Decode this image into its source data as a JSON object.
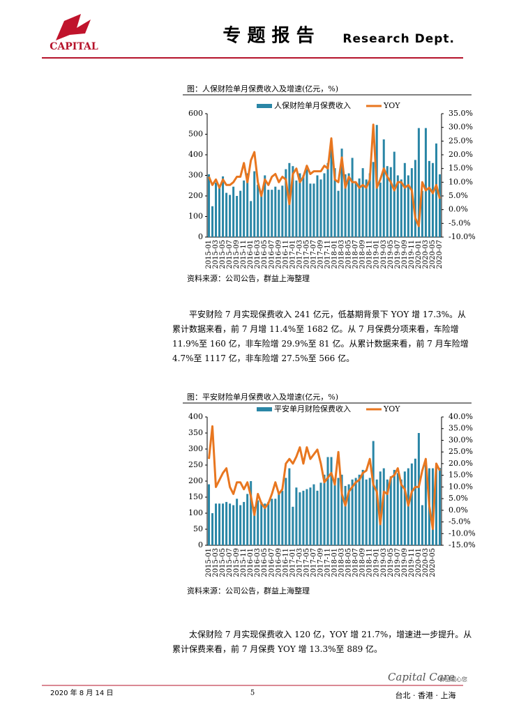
{
  "header": {
    "logo": "CAPITAL",
    "title": "专 题 报 告",
    "dept": "Research Dept."
  },
  "chart_data": [
    {
      "type": "combo",
      "caption": "图：人保财险单月保费收入及增速(亿元，%)",
      "source": "资料来源：公司公告，群益上海整理",
      "categories": [
        "2015-01",
        null,
        "2015-03",
        null,
        "2015-05",
        null,
        "2015-07",
        null,
        "2015-09",
        null,
        "2015-11",
        null,
        "2016-01",
        null,
        "2016-03",
        null,
        "2016-05",
        null,
        "2016-07",
        null,
        "2016-09",
        null,
        "2016-11",
        null,
        "2017-01",
        null,
        "2017-03",
        null,
        "2017-05",
        null,
        "2017-07",
        null,
        "2017-09",
        null,
        "2017-11",
        null,
        "2018-01",
        null,
        "2018-03",
        null,
        "2018-05",
        null,
        "2018-07",
        null,
        "2018-09",
        null,
        "2018-11",
        null,
        "2019-01",
        null,
        "2019-03",
        null,
        "2019-05",
        null,
        "2019-07",
        null,
        "2019-09",
        null,
        "2019-11",
        null,
        "2020-01",
        null,
        "2020-03",
        null,
        "2020-05",
        null,
        "2020-07"
      ],
      "series": [
        {
          "name": "人保财险单月保费收入",
          "type": "bar",
          "color": "#2a86a6",
          "values": [
            305,
            150,
            265,
            250,
            295,
            215,
            205,
            245,
            200,
            225,
            275,
            310,
            175,
            320,
            255,
            225,
            300,
            230,
            230,
            245,
            230,
            250,
            330,
            360,
            345,
            275,
            310,
            300,
            330,
            260,
            260,
            300,
            280,
            310,
            360,
            430,
            335,
            225,
            430,
            305,
            310,
            385,
            265,
            285,
            335,
            280,
            310,
            365,
            545,
            265,
            475,
            345,
            340,
            415,
            300,
            280,
            360,
            300,
            335,
            375,
            530,
            225,
            530,
            370,
            360,
            455,
            305
          ]
        },
        {
          "name": "YOY",
          "type": "line",
          "axis": "y2",
          "color": "#e8761f",
          "values": [
            12,
            9,
            11,
            8,
            11,
            9,
            9,
            10,
            12,
            12,
            17,
            10,
            18,
            21,
            10,
            5,
            11,
            9,
            12,
            13,
            10,
            12,
            11,
            2,
            13,
            15,
            10,
            12,
            16,
            13,
            14,
            14,
            14,
            16,
            15,
            26,
            11,
            10,
            19,
            8,
            12,
            10,
            10,
            8,
            9,
            8,
            11,
            31,
            8,
            11,
            15,
            12,
            10,
            7,
            10,
            10,
            8,
            9,
            7,
            -3,
            -6,
            10,
            7,
            8,
            6,
            9,
            4
          ]
        }
      ],
      "ylim": [
        0,
        600
      ],
      "yticks": [
        0,
        100,
        200,
        300,
        400,
        500,
        600
      ],
      "y2lim": [
        -10,
        35
      ],
      "y2ticks": [
        {
          "value": -10,
          "label": "-10.0%"
        },
        {
          "value": -5,
          "label": "-5.0%"
        },
        {
          "value": 0,
          "label": "0.0%"
        },
        {
          "value": 5,
          "label": "5.0%"
        },
        {
          "value": 10,
          "label": "10.0%"
        },
        {
          "value": 15,
          "label": "15.0%"
        },
        {
          "value": 20,
          "label": "20.0%"
        },
        {
          "value": 25,
          "label": "25.0%"
        },
        {
          "value": 30,
          "label": "30.0%"
        },
        {
          "value": 35,
          "label": "35.0%"
        }
      ]
    },
    {
      "type": "combo",
      "caption": "图：平安财险单月保费收入及增速(亿元，%)",
      "source": "资料来源：公司公告，群益上海整理",
      "categories": [
        "2015-01",
        null,
        "2015-03",
        null,
        "2015-05",
        null,
        "2015-07",
        null,
        "2015-09",
        null,
        "2015-11",
        null,
        "2016-01",
        null,
        "2016-03",
        null,
        "2016-05",
        null,
        "2016-07",
        null,
        "2016-09",
        null,
        "2016-11",
        null,
        "2017-01",
        null,
        "2017-03",
        null,
        "2017-05",
        null,
        "2017-07",
        null,
        "2017-09",
        null,
        "2017-11",
        null,
        "2018-01",
        null,
        "2018-03",
        null,
        "2018-05",
        null,
        "2018-07",
        null,
        "2018-09",
        null,
        "2018-11",
        null,
        "2019-01",
        null,
        "2019-03",
        null,
        "2019-05",
        null,
        "2019-07",
        null,
        "2019-09",
        null,
        "2019-11",
        null,
        "2020-01",
        null,
        "2020-03",
        null,
        "2020-05",
        null,
        null
      ],
      "series": [
        {
          "name": "平安单月财险保费收入",
          "type": "bar",
          "color": "#2a86a6",
          "values": [
            190,
            100,
            130,
            130,
            130,
            135,
            130,
            125,
            145,
            125,
            135,
            160,
            200,
            120,
            140,
            135,
            130,
            135,
            145,
            145,
            160,
            170,
            210,
            240,
            120,
            180,
            165,
            170,
            175,
            180,
            190,
            170,
            195,
            220,
            275,
            275,
            190,
            210,
            220,
            185,
            190,
            205,
            210,
            220,
            235,
            205,
            210,
            325,
            205,
            230,
            240,
            205,
            215,
            235,
            225,
            205,
            230,
            240,
            255,
            270,
            350,
            125,
            250,
            240,
            240,
            245,
            241
          ]
        },
        {
          "name": "YOY",
          "type": "line",
          "axis": "y2",
          "color": "#e8761f",
          "values": [
            22,
            36,
            10,
            13,
            16,
            18,
            10,
            7,
            12,
            12,
            9,
            12,
            6,
            -2,
            7,
            3,
            1,
            3,
            7,
            12,
            7,
            9,
            20,
            22,
            20,
            23,
            27,
            20,
            27,
            22,
            24,
            26,
            20,
            12,
            14,
            16,
            11,
            25,
            7,
            2,
            8,
            10,
            12,
            13,
            16,
            17,
            22,
            11,
            8,
            -6,
            8,
            7,
            14,
            15,
            18,
            11,
            9,
            2,
            8,
            10,
            10,
            17,
            22,
            2,
            -8,
            20,
            17
          ]
        }
      ],
      "ylim": [
        0,
        400
      ],
      "yticks": [
        0,
        50,
        100,
        150,
        200,
        250,
        300,
        350,
        400
      ],
      "y2lim": [
        -15,
        40
      ],
      "y2ticks": [
        {
          "value": -15,
          "label": "-15.0%"
        },
        {
          "value": -10,
          "label": "-10.0%"
        },
        {
          "value": -5,
          "label": "-5.0%"
        },
        {
          "value": 0,
          "label": "0.0%"
        },
        {
          "value": 5,
          "label": "5.0%"
        },
        {
          "value": 10,
          "label": "10.0%"
        },
        {
          "value": 15,
          "label": "15.0%"
        },
        {
          "value": 20,
          "label": "20.0%"
        },
        {
          "value": 25,
          "label": "25.0%"
        },
        {
          "value": 30,
          "label": "30.0%"
        },
        {
          "value": 35,
          "label": "35.0%"
        },
        {
          "value": 40,
          "label": "40.0%"
        }
      ]
    }
  ],
  "paragraphs": [
    "平安财险 7 月实现保费收入 241 亿元，低基期背景下 YOY 增 17.3%。从累计数据来看，前 7 月增 11.4%至 1682 亿。从 7 月保费分项来看，车险增 11.9%至 160 亿，非车险增 29.9%至 81 亿。从累计数据来看，前 7 月车险增 4.7%至 1117 亿，非车险增 27.5%至 566 亿。",
    "太保财险 7 月实现保费收入 120 亿，YOY 增 21.7%，增速进一步提升。从累计保费来看，前 7 月保费 YOY 增 13.3%至 889 亿。"
  ],
  "footer": {
    "date": "2020 年 8 月 14 日",
    "page": "5",
    "brand": "Capital Care",
    "brand_cn": "群益關心您",
    "offices": "台北 · 香港 · 上海"
  }
}
